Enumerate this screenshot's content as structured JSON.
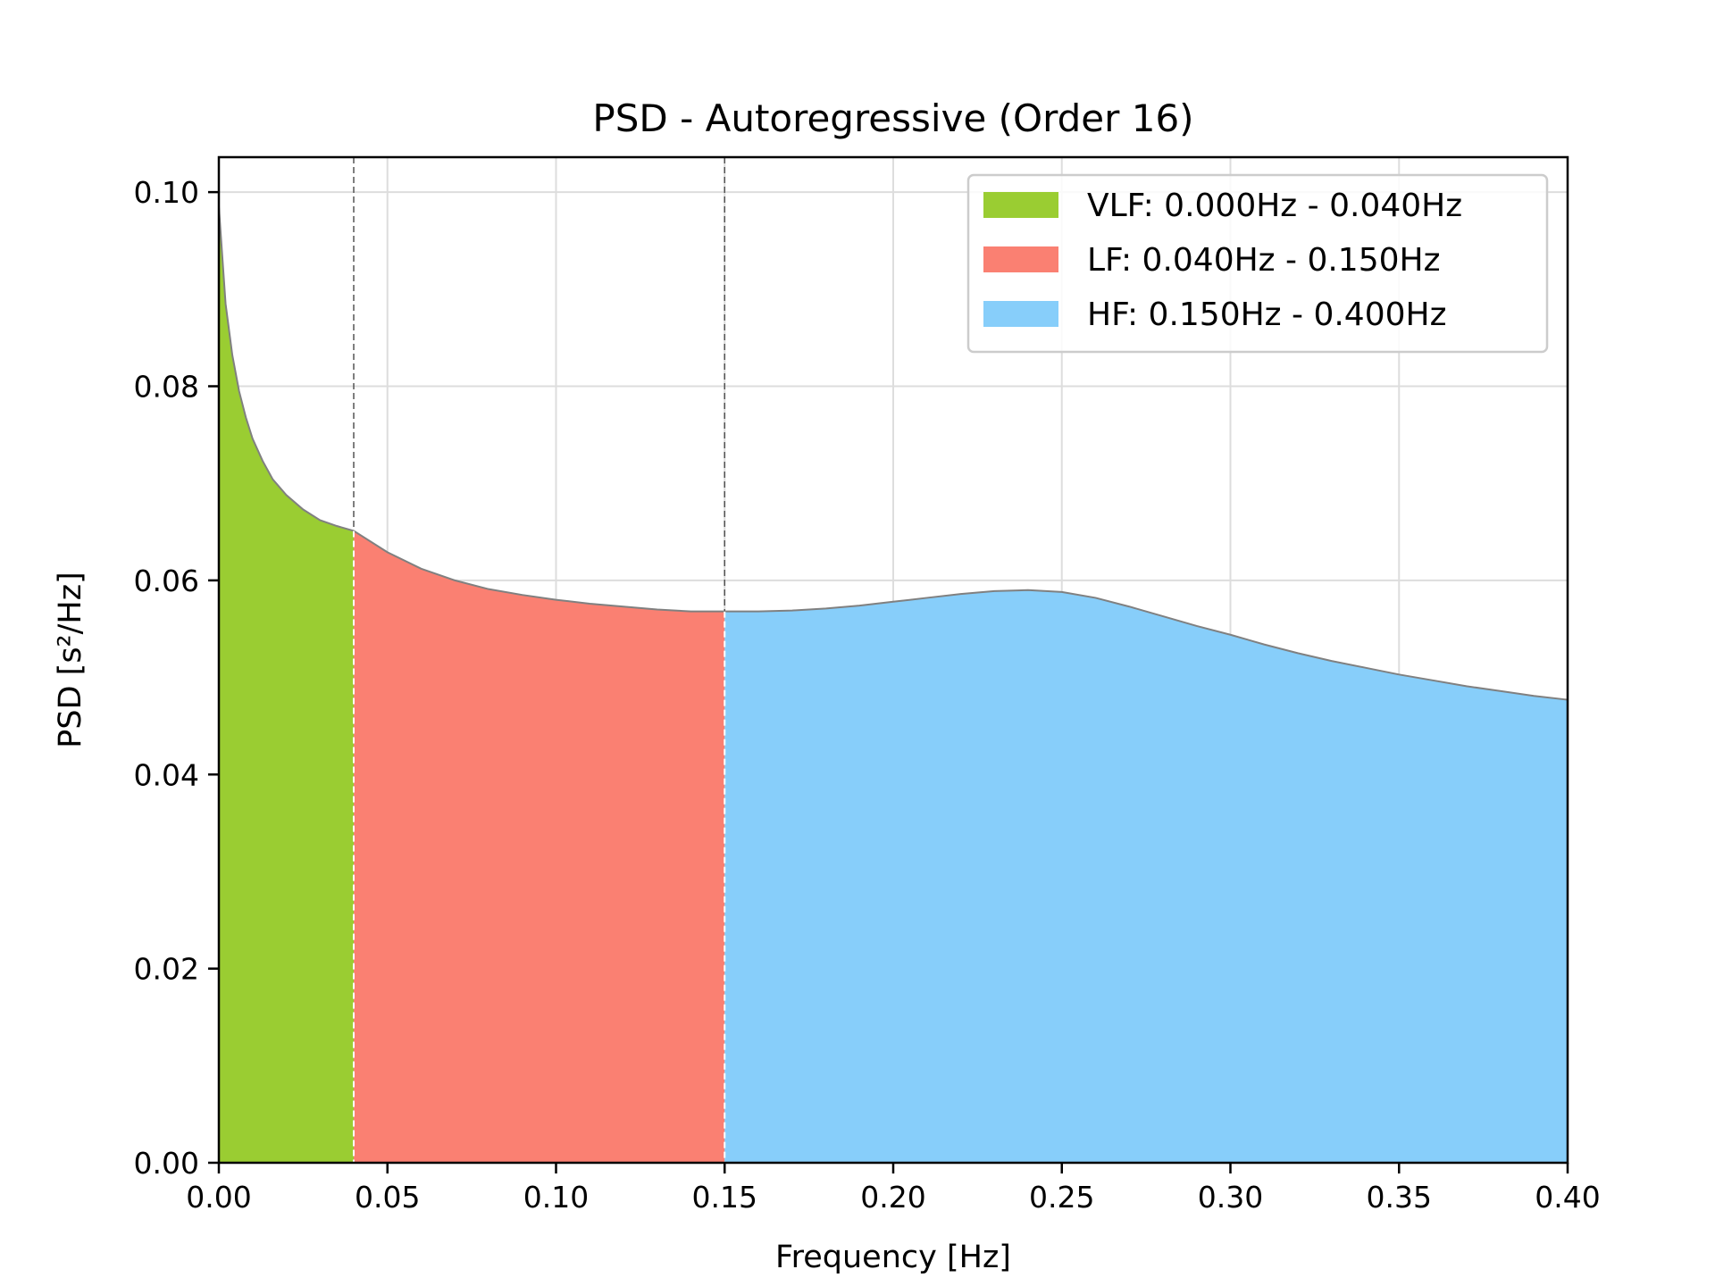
{
  "chart_data": {
    "type": "area",
    "title": "PSD - Autoregressive (Order 16)",
    "xlabel": "Frequency [Hz]",
    "ylabel": "PSD [s²/Hz]",
    "xlim": [
      0.0,
      0.4
    ],
    "ylim": [
      0.0,
      0.1036
    ],
    "xticks": [
      0.0,
      0.05,
      0.1,
      0.15,
      0.2,
      0.25,
      0.3,
      0.35,
      0.4
    ],
    "xtick_labels": [
      "0.00",
      "0.05",
      "0.10",
      "0.15",
      "0.20",
      "0.25",
      "0.30",
      "0.35",
      "0.40"
    ],
    "yticks": [
      0.0,
      0.02,
      0.04,
      0.06,
      0.08,
      0.1
    ],
    "ytick_labels": [
      "0.00",
      "0.02",
      "0.04",
      "0.06",
      "0.08",
      "0.10"
    ],
    "grid": true,
    "legend_position": "top-right",
    "band_boundaries": [
      0.04,
      0.15
    ],
    "curve": {
      "x": [
        0.0,
        0.001,
        0.002,
        0.004,
        0.006,
        0.008,
        0.01,
        0.013,
        0.016,
        0.02,
        0.025,
        0.03,
        0.035,
        0.04,
        0.05,
        0.06,
        0.07,
        0.08,
        0.09,
        0.1,
        0.11,
        0.12,
        0.13,
        0.14,
        0.15,
        0.16,
        0.17,
        0.18,
        0.19,
        0.2,
        0.21,
        0.22,
        0.23,
        0.24,
        0.25,
        0.26,
        0.27,
        0.28,
        0.29,
        0.3,
        0.31,
        0.32,
        0.33,
        0.34,
        0.35,
        0.36,
        0.37,
        0.38,
        0.39,
        0.4
      ],
      "y": [
        0.0985,
        0.0935,
        0.0885,
        0.0832,
        0.0795,
        0.0768,
        0.0746,
        0.0723,
        0.0704,
        0.0688,
        0.0673,
        0.0662,
        0.0656,
        0.0651,
        0.0629,
        0.0612,
        0.06,
        0.0591,
        0.0585,
        0.058,
        0.0576,
        0.0573,
        0.057,
        0.0568,
        0.0568,
        0.0568,
        0.0569,
        0.0571,
        0.0574,
        0.0578,
        0.0582,
        0.0586,
        0.0589,
        0.059,
        0.0588,
        0.0582,
        0.0573,
        0.0563,
        0.0553,
        0.0544,
        0.0534,
        0.0525,
        0.0517,
        0.051,
        0.0503,
        0.0497,
        0.0491,
        0.0486,
        0.0481,
        0.0477
      ]
    },
    "series": [
      {
        "name": "VLF: 0.000Hz - 0.040Hz",
        "range": [
          0.0,
          0.04
        ],
        "color": "#9ACD32"
      },
      {
        "name": "LF: 0.040Hz - 0.150Hz",
        "range": [
          0.04,
          0.15
        ],
        "color": "#FA8072"
      },
      {
        "name": "HF: 0.150Hz - 0.400Hz",
        "range": [
          0.15,
          0.4
        ],
        "color": "#87CEFA"
      }
    ]
  }
}
